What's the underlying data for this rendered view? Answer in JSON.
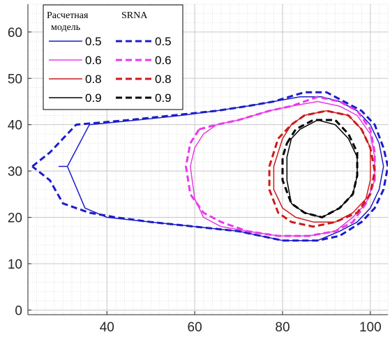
{
  "chart_data": {
    "type": "line",
    "title": "",
    "xlabel": "",
    "ylabel": "",
    "xlim": [
      22,
      104
    ],
    "ylim": [
      -1,
      66
    ],
    "xticks": [
      40,
      60,
      80,
      100
    ],
    "yticks": [
      0,
      10,
      20,
      30,
      40,
      50,
      60
    ],
    "grid": "minor dotted",
    "legend": {
      "placement": "top-left",
      "header_model": "Расчетная модель",
      "header_srna": "SRNA"
    },
    "series": [
      {
        "name": "0.5",
        "group": "model",
        "style": "solid",
        "color": "#1c1cc8",
        "points": [
          [
            29,
            31
          ],
          [
            31,
            31
          ],
          [
            36,
            40
          ],
          [
            47,
            41
          ],
          [
            57,
            42
          ],
          [
            65,
            43
          ],
          [
            72,
            44
          ],
          [
            78,
            45
          ],
          [
            84,
            46
          ],
          [
            89,
            46
          ],
          [
            93,
            45
          ],
          [
            97,
            43
          ],
          [
            100,
            40
          ],
          [
            102,
            36
          ],
          [
            103,
            31
          ],
          [
            102,
            26
          ],
          [
            100,
            22
          ],
          [
            97,
            19
          ],
          [
            93,
            17
          ],
          [
            88,
            15
          ],
          [
            80,
            15
          ],
          [
            70,
            17
          ],
          [
            60,
            18
          ],
          [
            50,
            19
          ],
          [
            40,
            20
          ],
          [
            35,
            22
          ],
          [
            31,
            31
          ]
        ]
      },
      {
        "name": "0.5",
        "group": "srna",
        "style": "dashed",
        "color": "#1c1cc8",
        "points": [
          [
            23,
            31
          ],
          [
            27,
            34
          ],
          [
            30,
            37
          ],
          [
            33,
            40
          ],
          [
            45,
            41
          ],
          [
            55,
            42
          ],
          [
            65,
            43
          ],
          [
            72,
            44
          ],
          [
            78,
            45
          ],
          [
            85,
            47
          ],
          [
            90,
            47
          ],
          [
            94,
            45
          ],
          [
            98,
            43
          ],
          [
            101,
            40
          ],
          [
            103,
            35
          ],
          [
            104,
            31
          ],
          [
            103,
            26
          ],
          [
            101,
            22
          ],
          [
            98,
            19
          ],
          [
            93,
            16
          ],
          [
            88,
            15
          ],
          [
            80,
            15
          ],
          [
            70,
            17
          ],
          [
            60,
            18
          ],
          [
            50,
            19
          ],
          [
            42,
            20
          ],
          [
            36,
            21
          ],
          [
            30,
            23
          ],
          [
            27,
            28
          ],
          [
            23,
            31
          ]
        ]
      },
      {
        "name": "0.6",
        "group": "model",
        "style": "solid",
        "color": "#e83ae8",
        "points": [
          [
            62,
            38
          ],
          [
            65,
            40
          ],
          [
            70,
            41
          ],
          [
            77,
            43
          ],
          [
            82,
            44
          ],
          [
            88,
            45
          ],
          [
            93,
            44
          ],
          [
            97,
            42
          ],
          [
            100,
            38
          ],
          [
            101,
            33
          ],
          [
            101,
            28
          ],
          [
            99,
            23
          ],
          [
            96,
            20
          ],
          [
            92,
            17
          ],
          [
            86,
            16
          ],
          [
            79,
            16
          ],
          [
            72,
            17
          ],
          [
            66,
            18
          ],
          [
            62,
            20
          ],
          [
            60,
            24
          ],
          [
            59,
            31
          ],
          [
            60,
            35
          ],
          [
            62,
            38
          ]
        ]
      },
      {
        "name": "0.6",
        "group": "srna",
        "style": "dashed",
        "color": "#e83ae8",
        "points": [
          [
            61,
            39
          ],
          [
            65,
            40
          ],
          [
            70,
            41
          ],
          [
            77,
            43
          ],
          [
            82,
            44
          ],
          [
            88,
            46
          ],
          [
            93,
            45
          ],
          [
            97,
            43
          ],
          [
            100,
            39
          ],
          [
            101,
            34
          ],
          [
            101,
            28
          ],
          [
            99,
            23
          ],
          [
            96,
            19
          ],
          [
            92,
            17
          ],
          [
            86,
            16
          ],
          [
            79,
            16
          ],
          [
            72,
            17
          ],
          [
            66,
            19
          ],
          [
            62,
            21
          ],
          [
            59,
            25
          ],
          [
            58,
            31
          ],
          [
            59,
            36
          ],
          [
            61,
            39
          ]
        ]
      },
      {
        "name": "0.8",
        "group": "model",
        "style": "solid",
        "color": "#cc1a1a",
        "points": [
          [
            80,
            37
          ],
          [
            82,
            40
          ],
          [
            85,
            42
          ],
          [
            90,
            43
          ],
          [
            95,
            42
          ],
          [
            98,
            39
          ],
          [
            100,
            35
          ],
          [
            100,
            28
          ],
          [
            99,
            24
          ],
          [
            96,
            21
          ],
          [
            92,
            19
          ],
          [
            87,
            19
          ],
          [
            83,
            20
          ],
          [
            80,
            22
          ],
          [
            78,
            26
          ],
          [
            78,
            31
          ],
          [
            79,
            34
          ],
          [
            80,
            37
          ]
        ]
      },
      {
        "name": "0.8",
        "group": "srna",
        "style": "dashed",
        "color": "#cc1a1a",
        "points": [
          [
            79,
            37
          ],
          [
            82,
            40
          ],
          [
            85,
            42
          ],
          [
            90,
            43
          ],
          [
            95,
            42
          ],
          [
            98,
            39
          ],
          [
            100,
            35
          ],
          [
            101,
            30
          ],
          [
            100,
            25
          ],
          [
            97,
            21
          ],
          [
            92,
            19
          ],
          [
            87,
            18
          ],
          [
            82,
            19
          ],
          [
            79,
            21
          ],
          [
            77,
            26
          ],
          [
            77,
            31
          ],
          [
            78,
            34
          ],
          [
            79,
            37
          ]
        ]
      },
      {
        "name": "0.9",
        "group": "model",
        "style": "solid",
        "color": "#000000",
        "points": [
          [
            82,
            37
          ],
          [
            84,
            39
          ],
          [
            88,
            41
          ],
          [
            92,
            40
          ],
          [
            95,
            37
          ],
          [
            97,
            33
          ],
          [
            97,
            29
          ],
          [
            96,
            25
          ],
          [
            93,
            22
          ],
          [
            89,
            20
          ],
          [
            85,
            21
          ],
          [
            82,
            23
          ],
          [
            81,
            28
          ],
          [
            81,
            33
          ],
          [
            82,
            37
          ]
        ]
      },
      {
        "name": "0.9",
        "group": "srna",
        "style": "dashed",
        "color": "#000000",
        "points": [
          [
            81,
            36
          ],
          [
            83,
            39
          ],
          [
            87,
            41
          ],
          [
            92,
            41
          ],
          [
            95,
            38
          ],
          [
            97,
            34
          ],
          [
            97,
            29
          ],
          [
            96,
            25
          ],
          [
            93,
            22
          ],
          [
            89,
            20
          ],
          [
            85,
            21
          ],
          [
            82,
            23
          ],
          [
            80,
            28
          ],
          [
            80,
            33
          ],
          [
            81,
            36
          ]
        ]
      }
    ]
  }
}
